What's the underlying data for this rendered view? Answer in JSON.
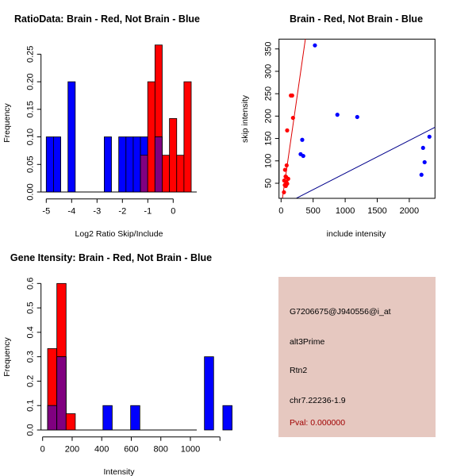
{
  "chart_data": [
    {
      "type": "bar",
      "subtype": "overlaid histogram",
      "title": "RatioData: Brain - Red, Not Brain - Blue",
      "xlabel": "Log2 Ratio Skip/Include",
      "ylabel": "Frequency",
      "xlim": [
        -5,
        0
      ],
      "ylim": [
        0,
        0.25
      ],
      "xticks": [
        -5,
        -4,
        -3,
        -2,
        -1,
        0
      ],
      "xtick_labels": [
        "-5",
        "-4",
        "-3",
        "-2",
        "-1",
        "0"
      ],
      "yticks": [
        0,
        0.05,
        0.1,
        0.15,
        0.2,
        0.25
      ],
      "ytick_labels": [
        "0.00",
        "0.05",
        "0.10",
        "0.15",
        "0.20",
        "0.25"
      ],
      "bin_start": -5,
      "bin_width": 0.2855,
      "series": [
        {
          "name": "Brain",
          "color": "#ff0000",
          "bins": [
            13,
            14,
            15,
            16,
            17,
            18,
            19
          ],
          "values": [
            0.0667,
            0.2,
            0.2667,
            0.0667,
            0.1333,
            0.0667,
            0.2
          ]
        },
        {
          "name": "Not Brain",
          "color": "#0000ff",
          "bins": [
            0,
            1,
            3,
            8,
            10,
            11,
            12,
            13,
            15
          ],
          "values": [
            0.1,
            0.1,
            0.2,
            0.1,
            0.1,
            0.1,
            0.1,
            0.1,
            0.1
          ]
        }
      ],
      "overlap_color": "#800080"
    },
    {
      "type": "scatter",
      "title": "Brain - Red, Not Brain - Blue",
      "xlabel": "include intensity",
      "ylabel": "skip intensity",
      "xlim": [
        -32,
        2400
      ],
      "ylim": [
        16,
        372
      ],
      "xticks": [
        0,
        500,
        1000,
        1500,
        2000
      ],
      "xtick_labels": [
        "0",
        "500",
        "1000",
        "1500",
        "2000"
      ],
      "yticks": [
        50,
        100,
        150,
        200,
        250,
        300,
        350
      ],
      "ytick_labels": [
        "50",
        "100",
        "150",
        "200",
        "250",
        "300",
        "350"
      ],
      "series": [
        {
          "name": "Brain",
          "color": "#ff0000",
          "x": [
            153,
            173,
            186,
            95,
            87,
            62,
            78,
            111,
            70,
            49,
            82,
            95,
            58,
            74,
            45
          ],
          "y": [
            246,
            246,
            196,
            168,
            90,
            80,
            64,
            60,
            65,
            56,
            53,
            49,
            46,
            44,
            30
          ],
          "fit": {
            "slope": 0.9936,
            "intercept": -4.6,
            "color": "#dd0000"
          }
        },
        {
          "name": "Not Brain",
          "color": "#0000ff",
          "x": [
            528,
            878,
            1188,
            330,
            305,
            346,
            2314,
            2215,
            2239,
            2190
          ],
          "y": [
            358,
            203,
            198,
            147,
            115,
            111,
            154,
            129,
            97,
            69
          ],
          "fit": {
            "slope": 0.0733,
            "intercept": -0.93,
            "color": "#00008b"
          }
        }
      ]
    },
    {
      "type": "bar",
      "subtype": "overlaid histogram",
      "title": "Gene Itensity: Brain - Red, Not Brain - Blue",
      "xlabel": "Intensity",
      "ylabel": "Frequency",
      "xlim": [
        0,
        1200
      ],
      "ylim": [
        0,
        0.6
      ],
      "xticks": [
        0,
        200,
        400,
        600,
        800,
        1000,
        1200
      ],
      "xtick_labels": [
        "0",
        "200",
        "400",
        "600",
        "800",
        "1000",
        ""
      ],
      "yticks": [
        0,
        0.1,
        0.2,
        0.3,
        0.4,
        0.5,
        0.6
      ],
      "ytick_labels": [
        "0.0",
        "0.1",
        "0.2",
        "0.3",
        "0.4",
        "0.5",
        "0.6"
      ],
      "bin_start": 34,
      "bin_width": 62.4,
      "series": [
        {
          "name": "Brain",
          "color": "#ff0000",
          "bins": [
            0,
            1,
            2
          ],
          "values": [
            0.3333,
            0.6,
            0.0667
          ]
        },
        {
          "name": "Not Brain",
          "color": "#0000ff",
          "bins": [
            0,
            1,
            6,
            9,
            17,
            19
          ],
          "values": [
            0.1,
            0.3,
            0.1,
            0.1,
            0.3,
            0.1
          ]
        }
      ],
      "overlap_color": "#800080"
    }
  ],
  "info": {
    "probe_id": "G7206675@J940556@i_at",
    "event_type": "alt3Prime",
    "gene": "Rtn2",
    "location": "chr7.22236-1.9",
    "pval": "Pval: 0.000000",
    "background": "#e6c8c0",
    "pval_color": "#a00000"
  }
}
